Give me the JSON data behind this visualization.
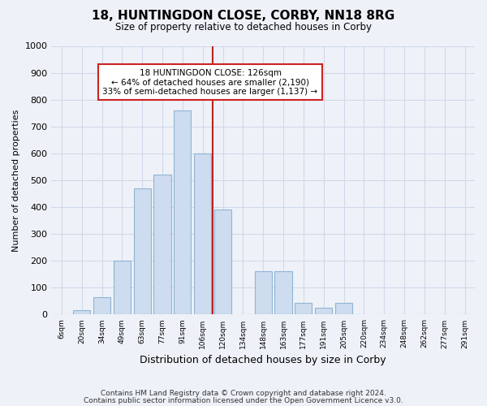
{
  "title": "18, HUNTINGDON CLOSE, CORBY, NN18 8RG",
  "subtitle": "Size of property relative to detached houses in Corby",
  "xlabel": "Distribution of detached houses by size in Corby",
  "ylabel": "Number of detached properties",
  "bar_color": "#cddcee",
  "bar_edge_color": "#92b4d4",
  "vline_color": "#bb2222",
  "vline_x_index": 8,
  "categories": [
    "6sqm",
    "20sqm",
    "34sqm",
    "49sqm",
    "63sqm",
    "77sqm",
    "91sqm",
    "106sqm",
    "120sqm",
    "134sqm",
    "148sqm",
    "163sqm",
    "177sqm",
    "191sqm",
    "205sqm",
    "220sqm",
    "234sqm",
    "248sqm",
    "262sqm",
    "277sqm",
    "291sqm"
  ],
  "values": [
    0,
    15,
    65,
    200,
    470,
    520,
    760,
    600,
    390,
    0,
    160,
    160,
    45,
    25,
    45,
    0,
    0,
    0,
    0,
    0,
    0
  ],
  "ylim": [
    0,
    1000
  ],
  "yticks": [
    0,
    100,
    200,
    300,
    400,
    500,
    600,
    700,
    800,
    900,
    1000
  ],
  "annotation_title": "18 HUNTINGDON CLOSE: 126sqm",
  "annotation_line1": "← 64% of detached houses are smaller (2,190)",
  "annotation_line2": "33% of semi-detached houses are larger (1,137) →",
  "footer1": "Contains HM Land Registry data © Crown copyright and database right 2024.",
  "footer2": "Contains public sector information licensed under the Open Government Licence v3.0.",
  "bg_color": "#eef2f8",
  "plot_bg_color": "#eef2f8",
  "grid_color": "#d0d8e8",
  "annotation_box_color": "#ffffff",
  "annotation_border_color": "#cc2222"
}
